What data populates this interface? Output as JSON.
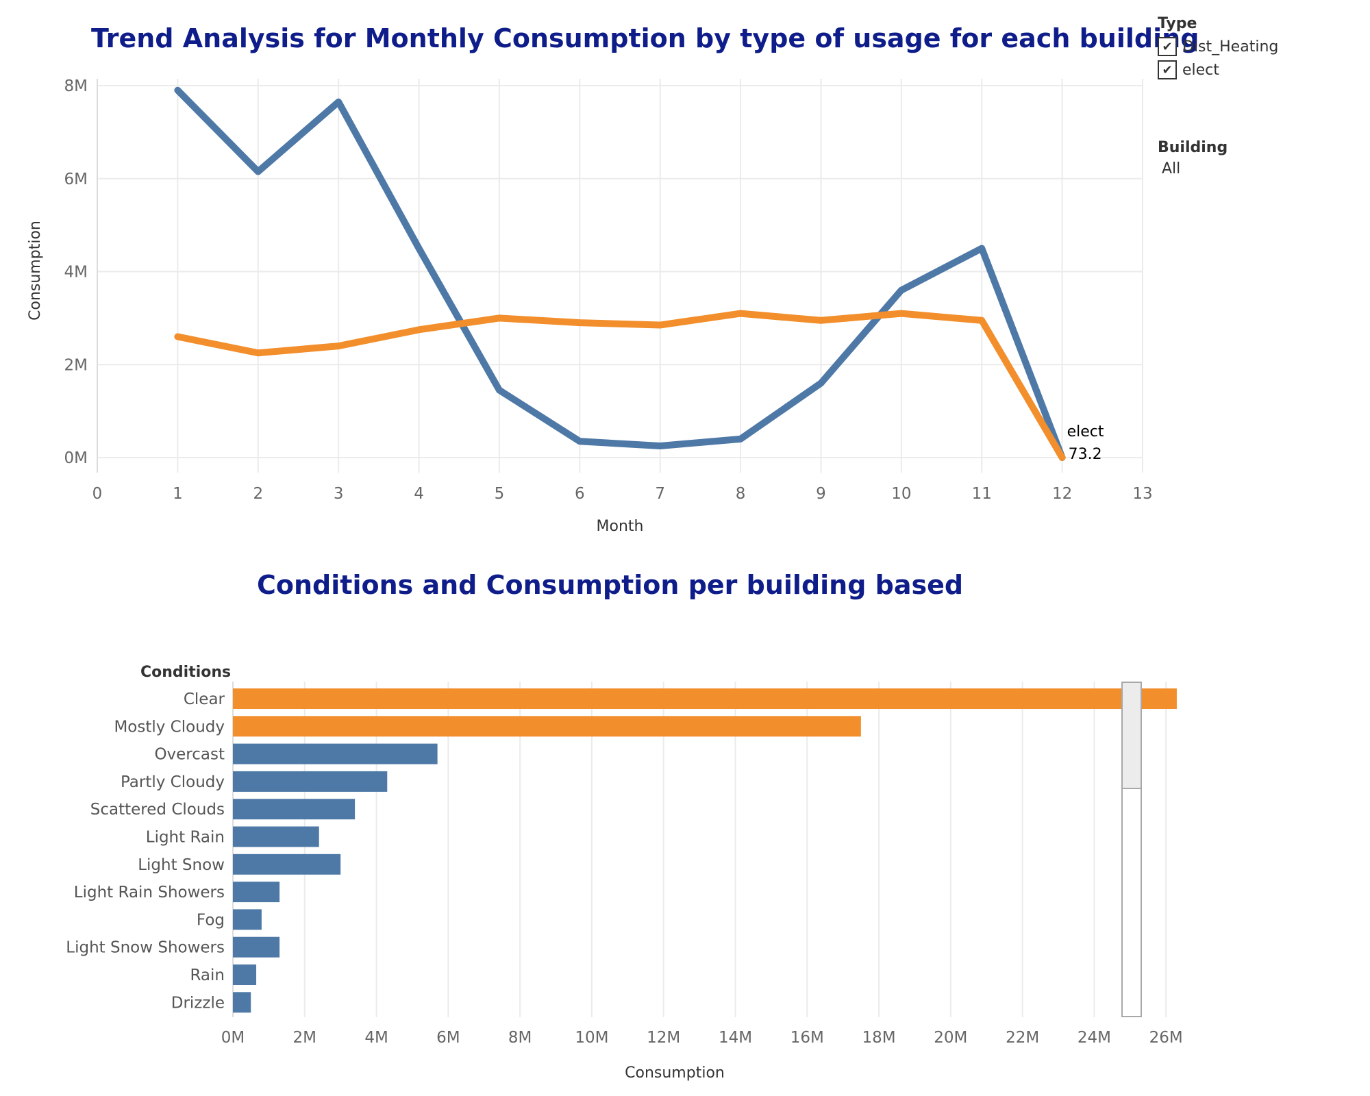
{
  "chart_data": [
    {
      "type": "line",
      "title": "Trend Analysis for Monthly Consumption by type of usage for each building",
      "xlabel": "Month",
      "ylabel": "Consumption",
      "xlim": [
        0,
        13
      ],
      "ylim": [
        0,
        8000000
      ],
      "x_ticks": [
        "0",
        "1",
        "2",
        "3",
        "4",
        "5",
        "6",
        "7",
        "8",
        "9",
        "10",
        "11",
        "12",
        "13"
      ],
      "y_ticks": [
        "0M",
        "2M",
        "4M",
        "6M",
        "8M"
      ],
      "grid": true,
      "x": [
        1,
        2,
        3,
        4,
        5,
        6,
        7,
        8,
        9,
        10,
        11,
        12
      ],
      "series": [
        {
          "name": "Dist_Heating",
          "color": "#4e79a7",
          "values": [
            7900000,
            6150000,
            7650000,
            4500000,
            1450000,
            350000,
            250000,
            400000,
            1600000,
            3600000,
            4500000,
            0
          ]
        },
        {
          "name": "elect",
          "color": "#f28e2b",
          "values": [
            2600000,
            2250000,
            2400000,
            2750000,
            3000000,
            2900000,
            2850000,
            3100000,
            2950000,
            3100000,
            2950000,
            73.2
          ]
        }
      ],
      "annotation": {
        "series": "elect",
        "label": "elect",
        "value_label": "73.2"
      }
    },
    {
      "type": "bar",
      "orientation": "horizontal",
      "title": "Conditions and Consumption per building based",
      "row_header": "Conditions",
      "xlabel": "Consumption",
      "xlim": [
        0,
        28000000
      ],
      "x_ticks": [
        "0M",
        "2M",
        "4M",
        "6M",
        "8M",
        "10M",
        "12M",
        "14M",
        "16M",
        "18M",
        "20M",
        "22M",
        "24M",
        "26M"
      ],
      "grid": true,
      "categories": [
        "Clear",
        "Mostly Cloudy",
        "Overcast",
        "Partly Cloudy",
        "Scattered Clouds",
        "Light Rain",
        "Light Snow",
        "Light Rain Showers",
        "Fog",
        "Light Snow Showers",
        "Rain",
        "Drizzle"
      ],
      "values": [
        26300000,
        17500000,
        5700000,
        4300000,
        3400000,
        2400000,
        3000000,
        1300000,
        800000,
        1300000,
        650000,
        500000
      ],
      "colors": [
        "#f28e2b",
        "#f28e2b",
        "#4e79a7",
        "#4e79a7",
        "#4e79a7",
        "#4e79a7",
        "#4e79a7",
        "#4e79a7",
        "#4e79a7",
        "#4e79a7",
        "#4e79a7",
        "#4e79a7"
      ]
    }
  ],
  "legend": {
    "type_heading": "Type",
    "items": [
      {
        "label": "Dist_Heating",
        "checked": "✔"
      },
      {
        "label": "elect",
        "checked": "✔"
      }
    ],
    "building_heading": "Building",
    "building_value": "All"
  }
}
